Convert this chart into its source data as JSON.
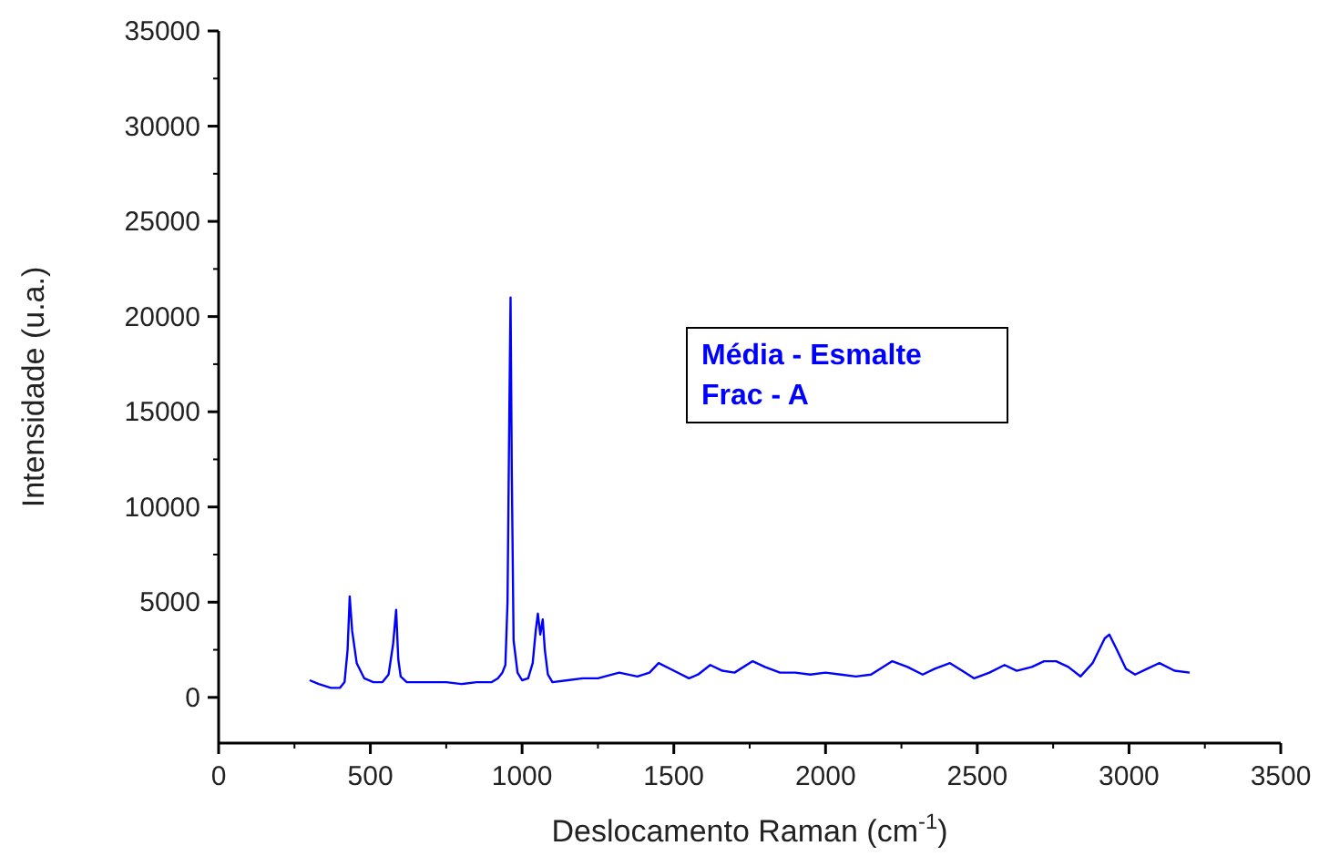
{
  "chart_data": {
    "type": "line",
    "xlabel": "Deslocamento Raman (cm$^{-1}$)",
    "ylabel": "Intensidade (u.a.)",
    "annotations": [
      "Média - Esmalte\nFrac - A"
    ],
    "xlim": [
      0,
      3500
    ],
    "xticks": [
      0,
      500,
      1000,
      1500,
      2000,
      2500,
      3000,
      3500
    ],
    "ylim": [
      -2400,
      35000
    ],
    "yticks": [
      0,
      5000,
      10000,
      15000,
      20000,
      25000,
      30000,
      35000
    ],
    "series": [
      {
        "color": "#0000ff",
        "x": [
          300,
          330,
          370,
          400,
          415,
          425,
          432,
          440,
          455,
          480,
          510,
          540,
          560,
          575,
          585,
          592,
          600,
          620,
          680,
          750,
          800,
          850,
          900,
          920,
          935,
          945,
          952,
          958,
          962,
          966,
          972,
          985,
          1000,
          1020,
          1035,
          1045,
          1052,
          1060,
          1068,
          1075,
          1085,
          1100,
          1150,
          1200,
          1250,
          1320,
          1380,
          1420,
          1450,
          1500,
          1550,
          1580,
          1620,
          1660,
          1700,
          1760,
          1800,
          1850,
          1900,
          1950,
          2000,
          2050,
          2100,
          2150,
          2220,
          2270,
          2320,
          2360,
          2410,
          2450,
          2490,
          2540,
          2590,
          2630,
          2680,
          2720,
          2760,
          2800,
          2840,
          2880,
          2920,
          2935,
          2960,
          2990,
          3020,
          3060,
          3100,
          3150,
          3200
        ],
        "values": [
          900,
          700,
          500,
          500,
          800,
          2500,
          5300,
          3500,
          1800,
          1000,
          800,
          800,
          1200,
          2800,
          4600,
          2000,
          1100,
          800,
          800,
          800,
          700,
          800,
          800,
          1000,
          1300,
          1700,
          5000,
          15000,
          21000,
          12000,
          3000,
          1300,
          900,
          1000,
          1800,
          3500,
          4400,
          3300,
          4100,
          2500,
          1200,
          800,
          900,
          1000,
          1000,
          1300,
          1100,
          1300,
          1800,
          1400,
          1000,
          1200,
          1700,
          1400,
          1300,
          1900,
          1600,
          1300,
          1300,
          1200,
          1300,
          1200,
          1100,
          1200,
          1900,
          1600,
          1200,
          1500,
          1800,
          1400,
          1000,
          1300,
          1700,
          1400,
          1600,
          1900,
          1900,
          1600,
          1100,
          1800,
          3100,
          3300,
          2500,
          1500,
          1200,
          1500,
          1800,
          1400,
          1300
        ]
      }
    ]
  }
}
